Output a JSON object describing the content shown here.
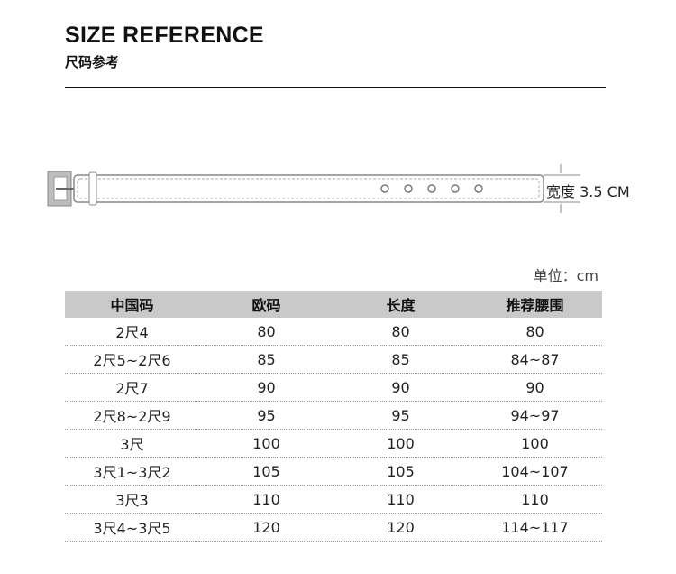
{
  "header": {
    "title": "SIZE REFERENCE",
    "subtitle": "尺码参考"
  },
  "belt": {
    "width_label": "宽度",
    "width_value": "3.5 CM"
  },
  "table": {
    "unit": "单位：cm",
    "columns": [
      "中国码",
      "欧码",
      "长度",
      "推荐腰围"
    ],
    "rows": [
      [
        "2尺4",
        "80",
        "80",
        "80"
      ],
      [
        "2尺5~2尺6",
        "85",
        "85",
        "84~87"
      ],
      [
        "2尺7",
        "90",
        "90",
        "90"
      ],
      [
        "2尺8~2尺9",
        "95",
        "95",
        "94~97"
      ],
      [
        "3尺",
        "100",
        "100",
        "100"
      ],
      [
        "3尺1~3尺2",
        "105",
        "105",
        "104~107"
      ],
      [
        "3尺3",
        "110",
        "110",
        "110"
      ],
      [
        "3尺4~3尺5",
        "120",
        "120",
        "114~117"
      ]
    ]
  }
}
